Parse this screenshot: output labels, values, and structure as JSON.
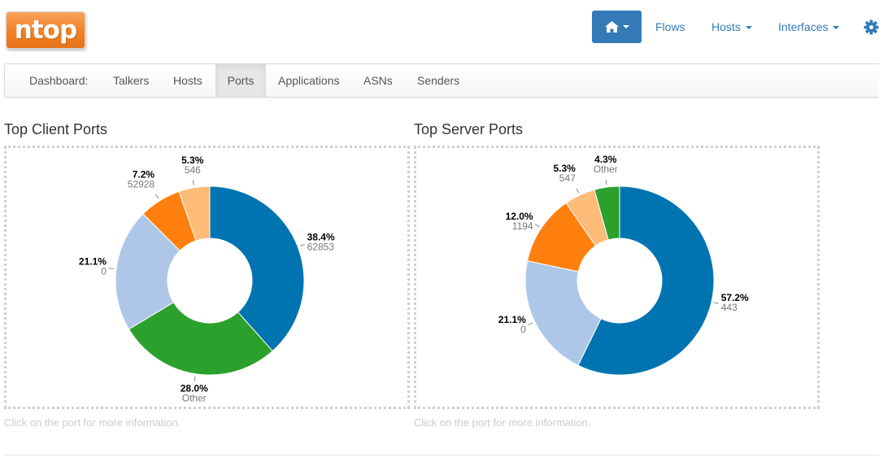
{
  "logo": {
    "text": "ntop"
  },
  "topnav": {
    "flows": "Flows",
    "hosts": "Hosts",
    "interfaces": "Interfaces"
  },
  "tabs": [
    {
      "label": "Dashboard:"
    },
    {
      "label": "Talkers"
    },
    {
      "label": "Hosts"
    },
    {
      "label": "Ports"
    },
    {
      "label": "Applications"
    },
    {
      "label": "ASNs"
    },
    {
      "label": "Senders"
    }
  ],
  "active_tab": "Ports",
  "client": {
    "title": "Top Client Ports",
    "help": "Click on the port for more information."
  },
  "server": {
    "title": "Top Server Ports",
    "help": "Click on the port for more information."
  },
  "colors": {
    "accent": "#337ab7",
    "logo": "#f28224",
    "slices": [
      "#1f77b4",
      "#2ca02c",
      "#aec7e8",
      "#ff7f0e",
      "#ffbb78"
    ]
  },
  "chart_data": [
    {
      "type": "pie",
      "title": "Top Client Ports",
      "donut": true,
      "slices": [
        {
          "label": "62853",
          "percent": "38.4%",
          "value": 38.4,
          "color": "#0074b0"
        },
        {
          "label": "Other",
          "percent": "28.0%",
          "value": 28.0,
          "color": "#2ca02c"
        },
        {
          "label": "0",
          "percent": "21.1%",
          "value": 21.1,
          "color": "#aec7e8"
        },
        {
          "label": "52928",
          "percent": "7.2%",
          "value": 7.2,
          "color": "#ff7f0e"
        },
        {
          "label": "546",
          "percent": "5.3%",
          "value": 5.3,
          "color": "#ffbb78"
        }
      ]
    },
    {
      "type": "pie",
      "title": "Top Server Ports",
      "donut": true,
      "slices": [
        {
          "label": "443",
          "percent": "57.2%",
          "value": 57.2,
          "color": "#0074b0"
        },
        {
          "label": "0",
          "percent": "21.1%",
          "value": 21.1,
          "color": "#aec7e8"
        },
        {
          "label": "1194",
          "percent": "12.0%",
          "value": 12.0,
          "color": "#ff7f0e"
        },
        {
          "label": "547",
          "percent": "5.3%",
          "value": 5.3,
          "color": "#ffbb78"
        },
        {
          "label": "Other",
          "percent": "4.3%",
          "value": 4.3,
          "color": "#2ca02c"
        }
      ]
    }
  ]
}
